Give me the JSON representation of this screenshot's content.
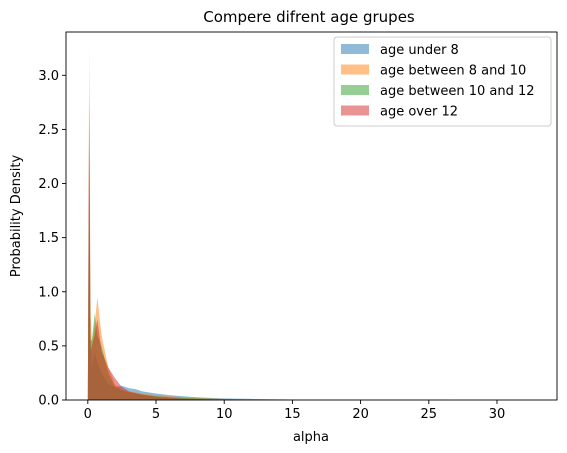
{
  "chart_data": {
    "type": "area",
    "title": "Compere difrent age grupes",
    "xlabel": "alpha",
    "ylabel": "Probability Density",
    "xlim": [
      -1.6,
      34.4
    ],
    "ylim": [
      0,
      3.4
    ],
    "xticks": [
      0,
      5,
      10,
      15,
      20,
      25,
      30
    ],
    "yticks": [
      0.0,
      0.5,
      1.0,
      1.5,
      2.0,
      2.5,
      3.0
    ],
    "xtick_labels": [
      "0",
      "5",
      "10",
      "15",
      "20",
      "25",
      "30"
    ],
    "ytick_labels": [
      "0.0",
      "0.5",
      "1.0",
      "1.5",
      "2.0",
      "2.5",
      "3.0"
    ],
    "grid": false,
    "legend_position": "top-right",
    "opacity": 0.5,
    "series": [
      {
        "name": "age under 8",
        "color": "#1f77b4",
        "x": [
          0.0,
          0.1,
          0.2,
          0.3,
          0.5,
          0.7,
          1.0,
          1.5,
          2.0,
          2.5,
          3.0,
          3.5,
          4.0,
          5.0,
          6.0,
          7.0,
          8.0,
          9.0,
          10.0,
          12.0,
          15.0,
          20.0,
          25.0,
          30.0,
          33.0
        ],
        "values": [
          0.0,
          2.85,
          0.6,
          0.3,
          0.45,
          0.35,
          0.25,
          0.15,
          0.12,
          0.13,
          0.11,
          0.1,
          0.08,
          0.06,
          0.045,
          0.035,
          0.025,
          0.02,
          0.015,
          0.01,
          0.005,
          0.003,
          0.002,
          0.001,
          0.0
        ]
      },
      {
        "name": "age between 8 and 10",
        "color": "#ff7f0e",
        "x": [
          0.0,
          0.1,
          0.2,
          0.3,
          0.5,
          0.7,
          1.0,
          1.5,
          2.0,
          2.5,
          3.0,
          3.5,
          4.0,
          5.0,
          6.0,
          7.0,
          8.0,
          9.0,
          10.0,
          12.0,
          15.0,
          20.0
        ],
        "values": [
          0.0,
          3.25,
          0.8,
          0.55,
          0.7,
          0.95,
          0.6,
          0.3,
          0.14,
          0.1,
          0.08,
          0.07,
          0.06,
          0.045,
          0.035,
          0.025,
          0.02,
          0.015,
          0.01,
          0.006,
          0.002,
          0.0
        ]
      },
      {
        "name": "age between 10 and 12",
        "color": "#2ca02c",
        "x": [
          0.0,
          0.1,
          0.2,
          0.3,
          0.5,
          0.7,
          1.0,
          1.5,
          2.0,
          2.5,
          3.0,
          3.5,
          4.0,
          5.0,
          6.0,
          7.0,
          8.0,
          10.0,
          12.0,
          15.0
        ],
        "values": [
          0.0,
          2.2,
          0.55,
          0.55,
          0.8,
          0.6,
          0.5,
          0.25,
          0.12,
          0.09,
          0.07,
          0.06,
          0.05,
          0.035,
          0.025,
          0.02,
          0.015,
          0.008,
          0.004,
          0.0
        ]
      },
      {
        "name": "age over 12",
        "color": "#d62728",
        "x": [
          0.0,
          0.1,
          0.2,
          0.3,
          0.5,
          0.7,
          1.0,
          1.5,
          2.0,
          2.5,
          3.0,
          4.0,
          5.0,
          6.0,
          7.0,
          8.0,
          10.0,
          12.0
        ],
        "values": [
          0.0,
          2.75,
          0.45,
          0.5,
          0.6,
          0.75,
          0.45,
          0.3,
          0.2,
          0.12,
          0.08,
          0.05,
          0.03,
          0.02,
          0.012,
          0.008,
          0.004,
          0.0
        ]
      }
    ]
  }
}
